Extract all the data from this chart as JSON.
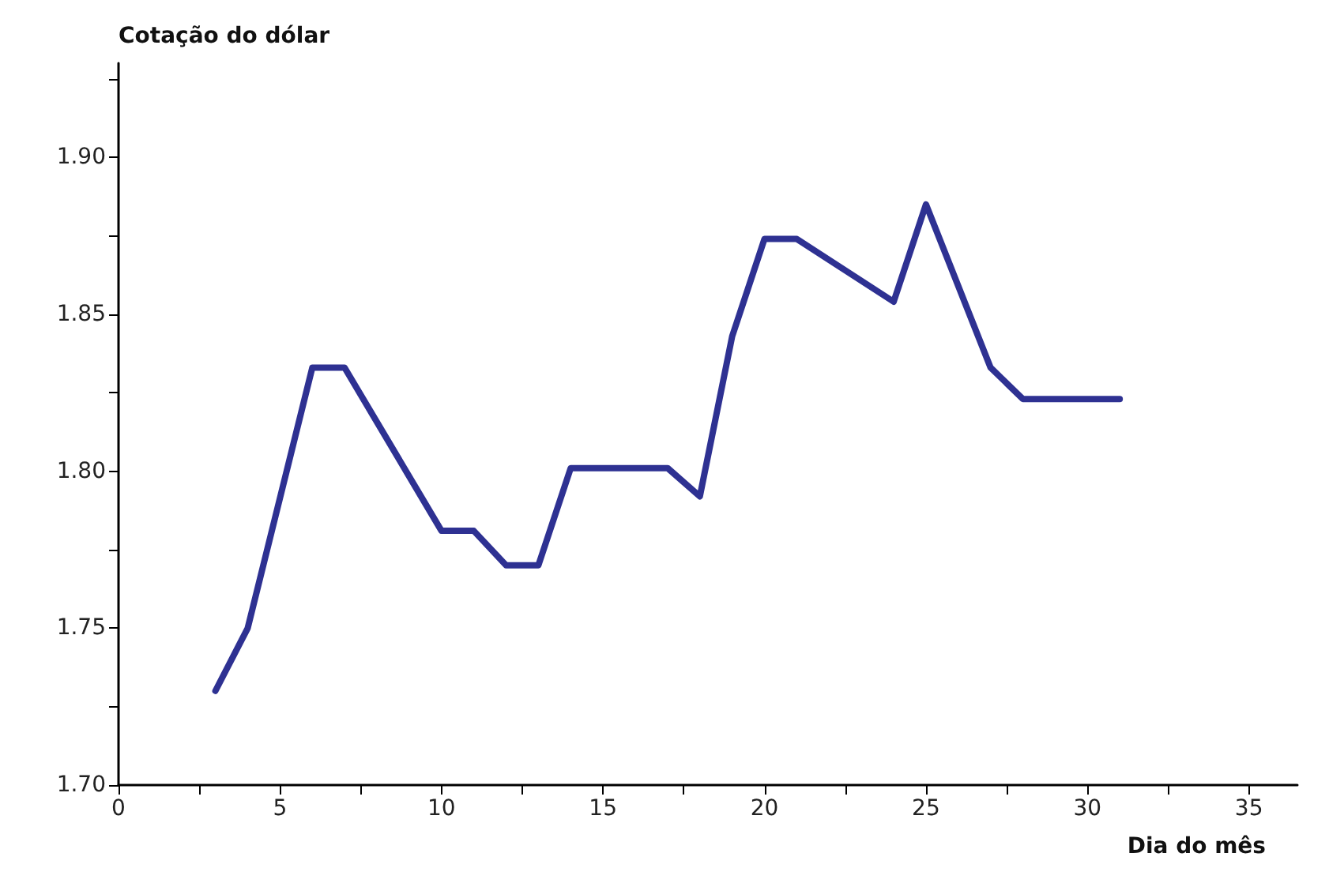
{
  "chart_data": {
    "type": "line",
    "ylabel": "Cotação do dólar",
    "xlabel": "Dia do mês",
    "x": [
      3,
      4,
      6,
      7,
      10,
      11,
      12,
      13,
      14,
      17,
      18,
      19,
      20,
      21,
      24,
      25,
      27,
      28,
      31
    ],
    "series": [
      {
        "color": "#2e3192",
        "values": [
          1.73,
          1.75,
          1.833,
          1.833,
          1.781,
          1.781,
          1.77,
          1.77,
          1.801,
          1.801,
          1.792,
          1.843,
          1.874,
          1.874,
          1.854,
          1.885,
          1.833,
          1.823,
          1.823
        ]
      }
    ],
    "xlim": [
      0,
      36.5
    ],
    "xticks": [
      0,
      {
        "value": 2.5,
        "label": null
      },
      5,
      {
        "value": 7.5,
        "label": null
      },
      10,
      {
        "value": 12.5,
        "label": null
      },
      15,
      {
        "value": 17.5,
        "label": null
      },
      20,
      {
        "value": 22.5,
        "label": null
      },
      25,
      {
        "value": 27.5,
        "label": null
      },
      30,
      {
        "value": 32.5,
        "label": null
      },
      35
    ],
    "ylim": [
      1.7,
      1.93
    ],
    "yticks": [
      {
        "value": 1.7,
        "label": "1.70"
      },
      {
        "value": 1.725,
        "label": null
      },
      {
        "value": 1.75,
        "label": "1.75"
      },
      {
        "value": 1.775,
        "label": null
      },
      {
        "value": 1.8,
        "label": "1.80"
      },
      {
        "value": 1.825,
        "label": null
      },
      {
        "value": 1.85,
        "label": "1.85"
      },
      {
        "value": 1.875,
        "label": null
      },
      {
        "value": 1.9,
        "label": "1.90"
      },
      {
        "value": 1.925,
        "label": null
      }
    ],
    "grid": false,
    "marker": "none",
    "line_style": "solid"
  }
}
